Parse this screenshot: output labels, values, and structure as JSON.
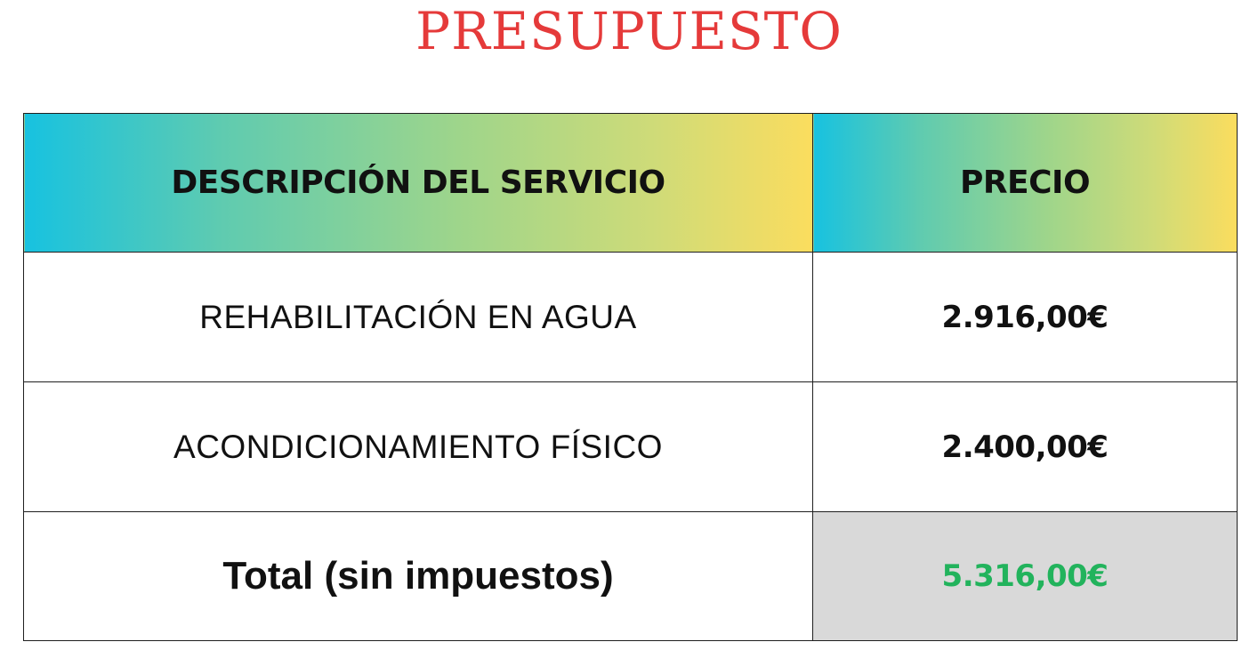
{
  "title": "PRESUPUESTO",
  "table": {
    "headers": {
      "description": "DESCRIPCIÓN DEL SERVICIO",
      "price": "PRECIO"
    },
    "rows": [
      {
        "description": "REHABILITACIÓN EN AGUA",
        "price": "2.916,00€"
      },
      {
        "description": "ACONDICIONAMIENTO FÍSICO",
        "price": "2.400,00€"
      }
    ],
    "total": {
      "label": "Total (sin impuestos)",
      "value": "5.316,00€"
    }
  },
  "colors": {
    "title": "#e53a3a",
    "header_gradient_start": "#17c2e0",
    "header_gradient_end": "#fbdd5e",
    "total_value": "#22b35c",
    "total_cell_background": "#d9d9d9"
  }
}
